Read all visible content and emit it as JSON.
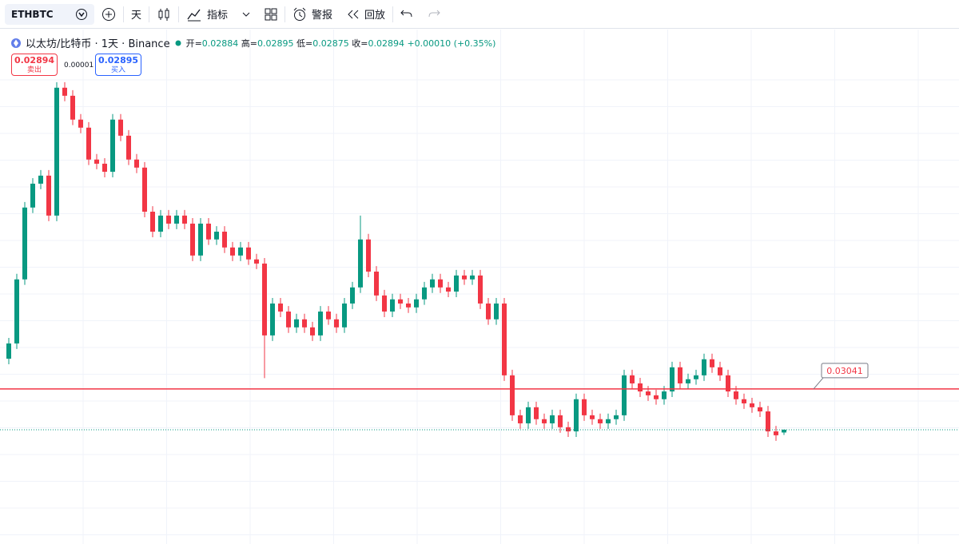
{
  "toolbar": {
    "symbol": "ETHBTC",
    "interval": "天",
    "indicators": "指标",
    "alert": "警报",
    "replay": "回放"
  },
  "legend": {
    "title": "以太坊/比特币 · 1天 · Binance",
    "open_label": "开=",
    "open": 0.02884,
    "high_label": "高=",
    "high": 0.02895,
    "low_label": "低=",
    "low": 0.02875,
    "close_label": "收=",
    "close": 0.02894,
    "change": "+0.00010 (+0.35%)"
  },
  "trade": {
    "sell_price": 0.02894,
    "sell_label": "卖出",
    "spread": 1e-05,
    "buy_price": 0.02895,
    "buy_label": "买入"
  },
  "chart_data": {
    "type": "candlestick",
    "open": [
      0.0315,
      0.03205,
      0.03436,
      0.03695,
      0.03781,
      0.0381,
      0.03666,
      0.04127,
      0.04098,
      0.04012,
      0.03983,
      0.03868,
      0.03853,
      0.03824,
      0.04012,
      0.03954,
      0.03868,
      0.03839,
      0.0368,
      0.03608,
      0.03666,
      0.03637,
      0.03666,
      0.03637,
      0.03522,
      0.03637,
      0.0358,
      0.03608,
      0.03551,
      0.03522,
      0.03551,
      0.03508,
      0.03493,
      0.03234,
      0.03349,
      0.0332,
      0.03263,
      0.03292,
      0.03263,
      0.03234,
      0.0332,
      0.03292,
      0.03263,
      0.03349,
      0.03407,
      0.0358,
      0.03464,
      0.03378,
      0.0332,
      0.03364,
      0.03349,
      0.03335,
      0.03364,
      0.03407,
      0.03436,
      0.03407,
      0.03392,
      0.0345,
      0.03436,
      0.0345,
      0.03349,
      0.03292,
      0.03349,
      0.0309,
      0.02946,
      0.02917,
      0.02975,
      0.02932,
      0.02917,
      0.02946,
      0.02903,
      0.02888,
      0.03004,
      0.02946,
      0.02932,
      0.02917,
      0.02932,
      0.02946,
      0.0309,
      0.03061,
      0.03032,
      0.03018,
      0.03004,
      0.03032,
      0.03119,
      0.03061,
      0.03076,
      0.0309,
      0.03148,
      0.03119,
      0.0309,
      0.03032,
      0.03004,
      0.02989,
      0.02975,
      0.0296,
      0.02888,
      0.02884
    ],
    "high": [
      0.03225,
      0.03456,
      0.03715,
      0.03801,
      0.0383,
      0.0383,
      0.04147,
      0.04147,
      0.04118,
      0.04032,
      0.04003,
      0.03888,
      0.03873,
      0.04032,
      0.04032,
      0.03974,
      0.03888,
      0.03859,
      0.037,
      0.03686,
      0.03686,
      0.03686,
      0.03686,
      0.03657,
      0.03657,
      0.03657,
      0.03628,
      0.03628,
      0.03571,
      0.03571,
      0.03571,
      0.03528,
      0.03513,
      0.03369,
      0.03369,
      0.0334,
      0.03312,
      0.03312,
      0.03283,
      0.0334,
      0.0334,
      0.03312,
      0.03369,
      0.03427,
      0.03666,
      0.036,
      0.03484,
      0.03398,
      0.03384,
      0.03384,
      0.03369,
      0.03384,
      0.03427,
      0.03456,
      0.03456,
      0.03427,
      0.0347,
      0.0347,
      0.0347,
      0.0347,
      0.03369,
      0.03369,
      0.03369,
      0.0311,
      0.02966,
      0.02995,
      0.02995,
      0.02952,
      0.02966,
      0.02966,
      0.02923,
      0.03024,
      0.03024,
      0.02966,
      0.02952,
      0.02952,
      0.02966,
      0.0311,
      0.0311,
      0.03081,
      0.03052,
      0.03038,
      0.03052,
      0.03139,
      0.03139,
      0.03096,
      0.0311,
      0.03168,
      0.03168,
      0.03139,
      0.0311,
      0.03052,
      0.03024,
      0.03009,
      0.02995,
      0.0298,
      0.02908,
      0.02895
    ],
    "low": [
      0.0313,
      0.03185,
      0.03416,
      0.03675,
      0.03761,
      0.03646,
      0.03646,
      0.04078,
      0.03992,
      0.03963,
      0.03848,
      0.03833,
      0.03804,
      0.03804,
      0.03934,
      0.03848,
      0.03819,
      0.0366,
      0.03588,
      0.03588,
      0.03617,
      0.03617,
      0.03617,
      0.03502,
      0.03502,
      0.0356,
      0.0356,
      0.03531,
      0.03502,
      0.03502,
      0.03488,
      0.03473,
      0.0308,
      0.03214,
      0.033,
      0.03243,
      0.03243,
      0.03243,
      0.03214,
      0.03214,
      0.03272,
      0.03243,
      0.03243,
      0.03329,
      0.03387,
      0.03444,
      0.03358,
      0.033,
      0.033,
      0.03329,
      0.03315,
      0.03315,
      0.03344,
      0.03387,
      0.03387,
      0.03372,
      0.03372,
      0.03416,
      0.03416,
      0.03329,
      0.03272,
      0.03272,
      0.0307,
      0.02926,
      0.02897,
      0.02897,
      0.02912,
      0.02897,
      0.02897,
      0.02883,
      0.02868,
      0.02868,
      0.02926,
      0.02912,
      0.02897,
      0.02897,
      0.02912,
      0.02926,
      0.03041,
      0.03012,
      0.02998,
      0.02984,
      0.02984,
      0.03012,
      0.03041,
      0.03041,
      0.03056,
      0.0307,
      0.03099,
      0.0307,
      0.03012,
      0.02984,
      0.02969,
      0.02955,
      0.0294,
      0.02868,
      0.02854,
      0.02875
    ],
    "close": [
      0.03205,
      0.03436,
      0.03695,
      0.03781,
      0.0381,
      0.03666,
      0.04127,
      0.04098,
      0.04012,
      0.03983,
      0.03868,
      0.03853,
      0.03824,
      0.04012,
      0.03954,
      0.03868,
      0.03839,
      0.0368,
      0.03608,
      0.03666,
      0.03637,
      0.03666,
      0.03637,
      0.03522,
      0.03637,
      0.0358,
      0.03608,
      0.03551,
      0.03522,
      0.03551,
      0.03508,
      0.03493,
      0.03234,
      0.03349,
      0.0332,
      0.03263,
      0.03292,
      0.03263,
      0.03234,
      0.0332,
      0.03292,
      0.03263,
      0.03349,
      0.03407,
      0.0358,
      0.03464,
      0.03378,
      0.0332,
      0.03364,
      0.03349,
      0.03335,
      0.03364,
      0.03407,
      0.03436,
      0.03407,
      0.03392,
      0.0345,
      0.03436,
      0.0345,
      0.03349,
      0.03292,
      0.03349,
      0.0309,
      0.02946,
      0.02917,
      0.02975,
      0.02932,
      0.02917,
      0.02946,
      0.02903,
      0.02888,
      0.03004,
      0.02946,
      0.02932,
      0.02917,
      0.02932,
      0.02946,
      0.0309,
      0.03061,
      0.03032,
      0.03018,
      0.03004,
      0.03032,
      0.03119,
      0.03061,
      0.03076,
      0.0309,
      0.03148,
      0.03119,
      0.0309,
      0.03032,
      0.03004,
      0.02989,
      0.02975,
      0.0296,
      0.02888,
      0.02874,
      0.02894
    ],
    "up_color": "#089981",
    "down_color": "#f23645",
    "ylim": [
      0.02482,
      0.04328
    ],
    "grid": true,
    "price_line": {
      "value": 0.03041,
      "color": "#f23645"
    }
  }
}
